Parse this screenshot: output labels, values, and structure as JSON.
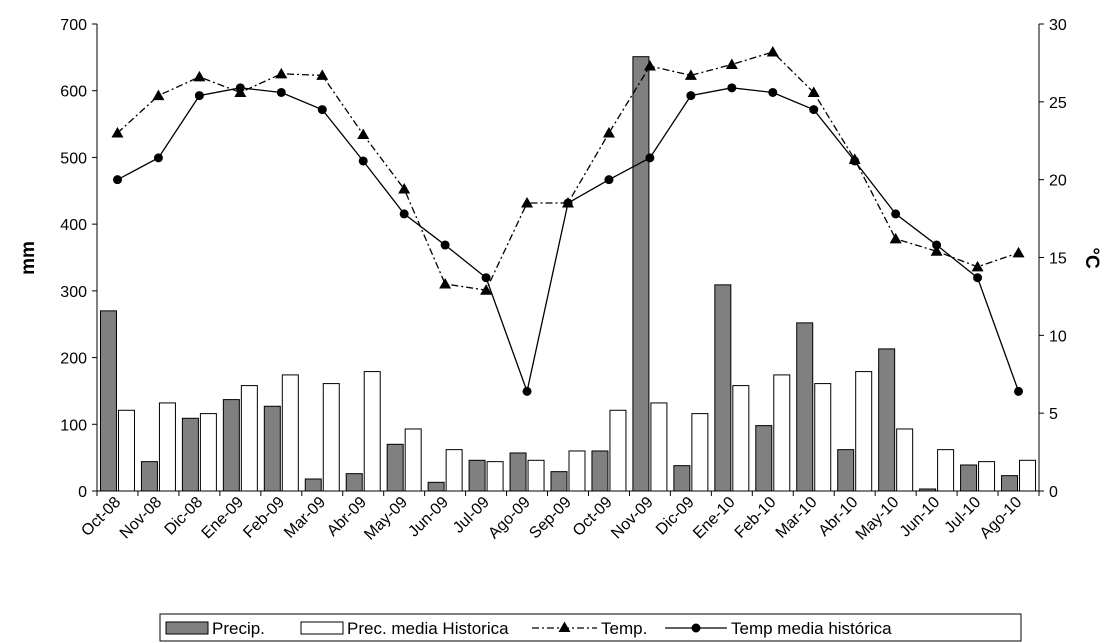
{
  "chart_data": {
    "type": "bar",
    "categories": [
      "Oct-08",
      "Nov-08",
      "Dic-08",
      "Ene-09",
      "Feb-09",
      "Mar-09",
      "Abr-09",
      "May-09",
      "Jun-09",
      "Jul-09",
      "Ago-09",
      "Sep-09",
      "Oct-09",
      "Nov-09",
      "Dic-09",
      "Ene-10",
      "Feb-10",
      "Mar-10",
      "Abr-10",
      "May-10",
      "Jun-10",
      "Jul-10",
      "Ago-10"
    ],
    "series": [
      {
        "name": "Precip.",
        "type": "bar",
        "axis": "left",
        "color": "#808080",
        "values": [
          270,
          44,
          109,
          137,
          127,
          18,
          26,
          70,
          13,
          46,
          57,
          29,
          60,
          651,
          38,
          309,
          98,
          252,
          62,
          213,
          3,
          39,
          23
        ]
      },
      {
        "name": "Prec. media Historica",
        "type": "bar",
        "axis": "left",
        "color": "#ffffff",
        "values": [
          121,
          132,
          116,
          158,
          174,
          161,
          179,
          93,
          62,
          44,
          46,
          60,
          121,
          132,
          116,
          158,
          174,
          161,
          179,
          93,
          62,
          44,
          46
        ]
      },
      {
        "name": "Temp.",
        "type": "line",
        "axis": "right",
        "style": "dash-dot",
        "marker": "triangle",
        "values": [
          23.0,
          25.4,
          26.6,
          25.6,
          26.8,
          26.7,
          22.9,
          19.4,
          13.3,
          12.9,
          18.5,
          18.5,
          23.0,
          27.3,
          26.7,
          27.4,
          28.2,
          25.6,
          21.3,
          16.2,
          15.4,
          14.4,
          15.3
        ]
      },
      {
        "name": "Temp media histórica",
        "type": "line",
        "axis": "right",
        "style": "solid",
        "marker": "circle",
        "values": [
          20.0,
          21.4,
          25.4,
          25.9,
          25.6,
          24.5,
          21.2,
          17.8,
          15.8,
          13.7,
          6.4,
          18.5,
          20.0,
          21.4,
          25.4,
          25.9,
          25.6,
          24.5,
          21.2,
          17.8,
          15.8,
          13.7,
          6.4
        ]
      }
    ],
    "ylabel": "mm",
    "y2label": "°C",
    "ylim": [
      0,
      700
    ],
    "y2lim": [
      0,
      30
    ],
    "yticks": [
      0,
      100,
      200,
      300,
      400,
      500,
      600,
      700
    ],
    "y2ticks": [
      0,
      5,
      10,
      15,
      20,
      25,
      30
    ],
    "grid": false,
    "legend_position": "bottom"
  }
}
